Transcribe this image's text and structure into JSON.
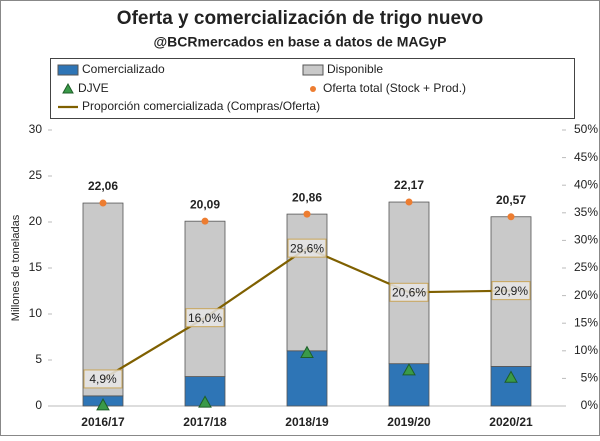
{
  "chart_data": {
    "type": "stacked-bar-line",
    "title": "Oferta y comercialización de trigo nuevo",
    "subtitle": "@BCRmercados en base a datos de MAGyP",
    "y_label": "Millones de toneladas",
    "categories": [
      "2016/17",
      "2017/18",
      "2018/19",
      "2019/20",
      "2020/21"
    ],
    "series": [
      {
        "name": "Comercializado",
        "color": "#2e75b6",
        "kind": "bar",
        "values": [
          1.1,
          3.2,
          6.0,
          4.6,
          4.3
        ]
      },
      {
        "name": "Disponible",
        "color": "#c9c9c9",
        "kind": "bar",
        "values": [
          20.96,
          16.89,
          14.86,
          17.57,
          16.27
        ]
      },
      {
        "name": "DJVE",
        "color": "#3a9a48",
        "kind": "triangle",
        "values": [
          0.1,
          0.4,
          5.8,
          3.9,
          3.1
        ]
      },
      {
        "name": "Oferta total (Stock + Prod.)",
        "color": "#ed7d31",
        "kind": "dot",
        "values": [
          22.06,
          20.09,
          20.86,
          22.17,
          20.57
        ],
        "value_labels": [
          "22,06",
          "20,09",
          "20,86",
          "22,17",
          "20,57"
        ]
      },
      {
        "name": "Proporción comercializada (Compras/Oferta)",
        "color": "#7f6000",
        "kind": "line",
        "axis": "y2",
        "values": [
          4.9,
          16.0,
          28.6,
          20.6,
          20.9
        ],
        "value_labels": [
          "4,9%",
          "16,0%",
          "28,6%",
          "20,6%",
          "20,9%"
        ]
      }
    ],
    "ylim": [
      0,
      30
    ],
    "yticks": [
      0,
      5,
      10,
      15,
      20,
      25,
      30
    ],
    "y2lim": [
      0,
      50
    ],
    "y2ticks": [
      {
        "value": 0,
        "label": "0%"
      },
      {
        "value": 5,
        "label": "5%"
      },
      {
        "value": 10,
        "label": "10%"
      },
      {
        "value": 15,
        "label": "15%"
      },
      {
        "value": 20,
        "label": "20%"
      },
      {
        "value": 25,
        "label": "25%"
      },
      {
        "value": 30,
        "label": "30%"
      },
      {
        "value": 35,
        "label": "35%"
      },
      {
        "value": 40,
        "label": "40%"
      },
      {
        "value": 45,
        "label": "45%"
      },
      {
        "value": 50,
        "label": "50%"
      }
    ]
  }
}
